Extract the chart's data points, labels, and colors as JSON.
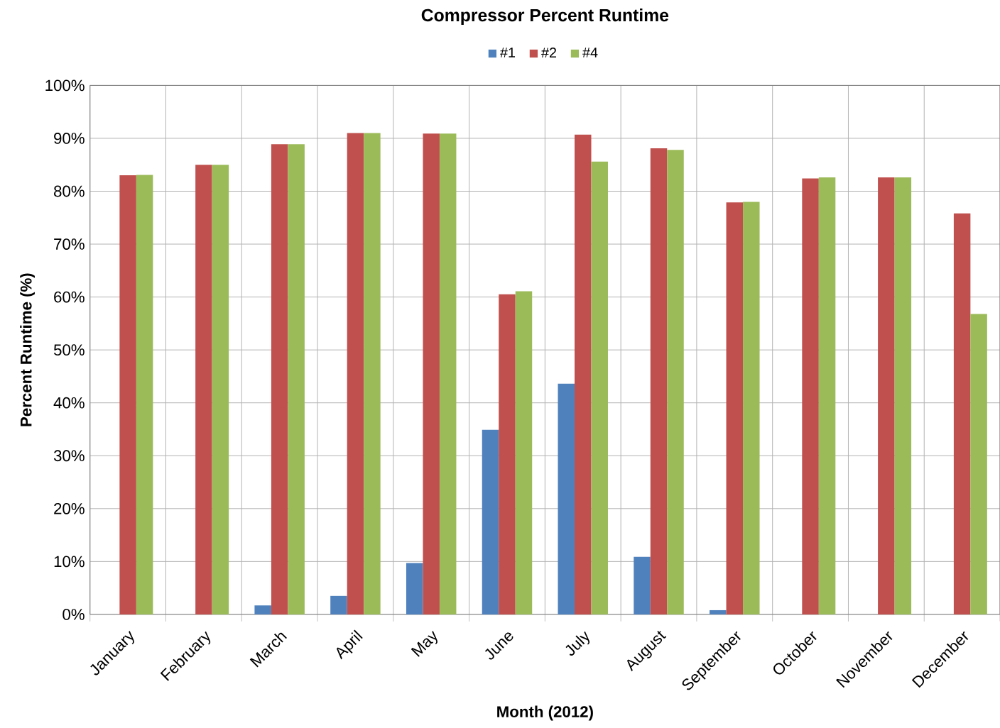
{
  "chart_data": {
    "type": "bar",
    "title": "Compressor Percent Runtime",
    "xlabel": "Month (2012)",
    "ylabel": "Percent Runtime (%)",
    "categories": [
      "January",
      "February",
      "March",
      "April",
      "May",
      "June",
      "July",
      "August",
      "September",
      "October",
      "November",
      "December"
    ],
    "series": [
      {
        "name": "#1",
        "color": "#4f81bd",
        "values": [
          0,
          0,
          1.7,
          3.5,
          9.7,
          34.9,
          43.6,
          10.9,
          0.8,
          0,
          0,
          0
        ]
      },
      {
        "name": "#2",
        "color": "#c0504d",
        "values": [
          83.0,
          85.0,
          88.9,
          91.0,
          90.9,
          60.5,
          90.7,
          88.1,
          77.9,
          82.4,
          82.6,
          75.8
        ]
      },
      {
        "name": "#4",
        "color": "#9bbb59",
        "values": [
          83.1,
          85.0,
          88.9,
          91.0,
          90.9,
          61.1,
          85.6,
          87.8,
          78.0,
          82.6,
          82.6,
          56.8
        ]
      }
    ],
    "ylim": [
      0,
      100
    ],
    "yticks": [
      {
        "value": 0,
        "label": "0%"
      },
      {
        "value": 10,
        "label": "10%"
      },
      {
        "value": 20,
        "label": "20%"
      },
      {
        "value": 30,
        "label": "30%"
      },
      {
        "value": 40,
        "label": "40%"
      },
      {
        "value": 50,
        "label": "50%"
      },
      {
        "value": 60,
        "label": "60%"
      },
      {
        "value": 70,
        "label": "70%"
      },
      {
        "value": 80,
        "label": "80%"
      },
      {
        "value": 90,
        "label": "90%"
      },
      {
        "value": 100,
        "label": "100%"
      }
    ],
    "grid": true,
    "legend": "top"
  }
}
